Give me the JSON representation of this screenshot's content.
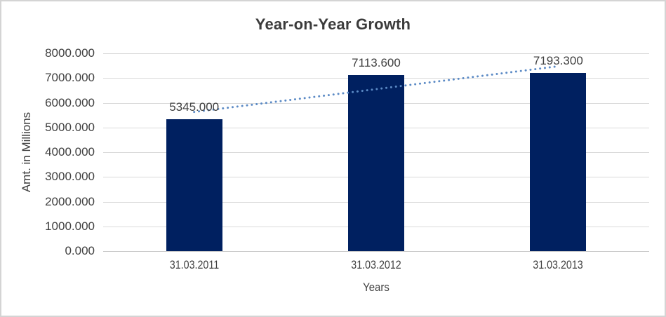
{
  "chart_data": {
    "type": "bar",
    "title": "Year-on-Year Growth",
    "categories": [
      "31.03.2011",
      "31.03.2012",
      "31.03.2013"
    ],
    "values": [
      5345.0,
      7113.6,
      7193.3
    ],
    "data_labels": [
      "5345.000",
      "7113.600",
      "7193.300"
    ],
    "xlabel": "Years",
    "ylabel": "Amt. in Millions",
    "ylim": [
      0,
      8000
    ],
    "ytick_interval": 1000,
    "ytick_labels": [
      "0.000",
      "1000.000",
      "2000.000",
      "3000.000",
      "4000.000",
      "5000.000",
      "6000.000",
      "7000.000",
      "8000.000"
    ],
    "grid": true,
    "legend": "none",
    "trendline": {
      "type": "linear",
      "style": "dotted",
      "color": "#5b8ac5"
    },
    "colors": {
      "bar": "#002060",
      "gridline": "#d9d9d9",
      "axis_line": "#c6c6c6",
      "text": "#404040",
      "title": "#3b3b3b"
    }
  }
}
